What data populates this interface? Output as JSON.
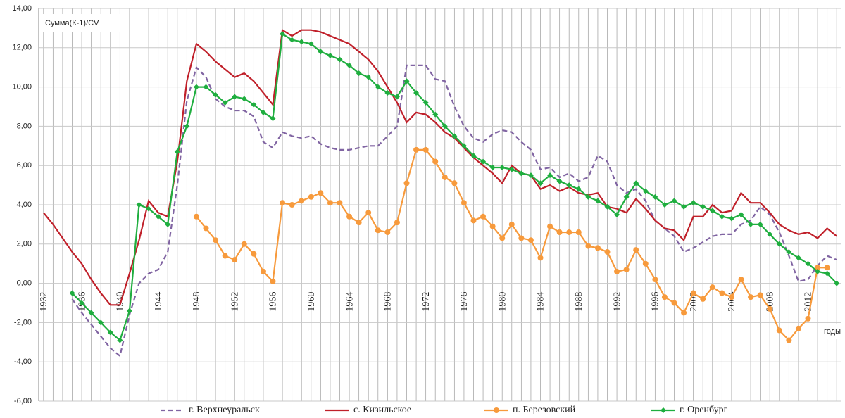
{
  "chart_data": {
    "type": "line",
    "y_label": "Сумма(К-1)/CV",
    "x_label": "годы",
    "x": [
      1932,
      1933,
      1934,
      1935,
      1936,
      1937,
      1938,
      1939,
      1940,
      1941,
      1942,
      1943,
      1944,
      1945,
      1946,
      1947,
      1948,
      1949,
      1950,
      1951,
      1952,
      1953,
      1954,
      1955,
      1956,
      1957,
      1958,
      1959,
      1960,
      1961,
      1962,
      1963,
      1964,
      1965,
      1966,
      1967,
      1968,
      1969,
      1970,
      1971,
      1972,
      1973,
      1974,
      1975,
      1976,
      1977,
      1978,
      1979,
      1980,
      1981,
      1982,
      1983,
      1984,
      1985,
      1986,
      1987,
      1988,
      1989,
      1990,
      1991,
      1992,
      1993,
      1994,
      1995,
      1996,
      1997,
      1998,
      1999,
      2000,
      2001,
      2002,
      2003,
      2004,
      2005,
      2006,
      2007,
      2008,
      2009,
      2010,
      2011,
      2012,
      2013,
      2014,
      2015
    ],
    "xlim": [
      1931.5,
      2015.5
    ],
    "xticks": [
      1932,
      1936,
      1940,
      1944,
      1948,
      1952,
      1956,
      1960,
      1964,
      1968,
      1972,
      1976,
      1980,
      1984,
      1988,
      1992,
      1996,
      2000,
      2004,
      2008,
      2012
    ],
    "ylim": [
      -6,
      14
    ],
    "yticks": [
      {
        "value": -6,
        "label": "-6,00"
      },
      {
        "value": -4,
        "label": "-4,00"
      },
      {
        "value": -2,
        "label": "-2,00"
      },
      {
        "value": 0,
        "label": "0,00"
      },
      {
        "value": 2,
        "label": "2,00"
      },
      {
        "value": 4,
        "label": "4,00"
      },
      {
        "value": 6,
        "label": "6,00"
      },
      {
        "value": 8,
        "label": "8,00"
      },
      {
        "value": 10,
        "label": "10,00"
      },
      {
        "value": 12,
        "label": "12,00"
      },
      {
        "value": 14,
        "label": "14,00"
      }
    ],
    "grid": true,
    "legend": "bottom",
    "series": [
      {
        "name": "г. Верхнеуральск",
        "color": "#8064a2",
        "line_style": "dashed",
        "marker": null,
        "values": [
          null,
          null,
          null,
          -0.8,
          -1.5,
          -2.1,
          -2.7,
          -3.3,
          -3.7,
          -1.6,
          0.0,
          0.5,
          0.7,
          1.6,
          5.0,
          9.3,
          11.0,
          10.5,
          9.4,
          9.0,
          8.8,
          8.8,
          8.5,
          7.2,
          6.9,
          7.7,
          7.5,
          7.4,
          7.5,
          7.1,
          6.9,
          6.8,
          6.8,
          6.9,
          7.0,
          7.0,
          7.5,
          8.0,
          11.1,
          11.1,
          11.1,
          10.4,
          10.3,
          9.0,
          8.0,
          7.4,
          7.2,
          7.6,
          7.8,
          7.7,
          7.2,
          6.8,
          5.8,
          5.9,
          5.4,
          5.6,
          5.2,
          5.4,
          6.5,
          6.2,
          5.0,
          4.6,
          4.8,
          4.2,
          3.2,
          2.8,
          2.4,
          1.6,
          1.8,
          2.1,
          2.4,
          2.5,
          2.5,
          3.0,
          3.2,
          3.9,
          3.5,
          2.6,
          1.4,
          0.1,
          0.2,
          0.9,
          1.4,
          1.2
        ]
      },
      {
        "name": "с. Кизильское",
        "color": "#c0202a",
        "line_style": "solid",
        "marker": null,
        "values": [
          3.6,
          3.0,
          2.3,
          1.6,
          1.0,
          0.2,
          -0.5,
          -1.1,
          -1.1,
          0.5,
          2.2,
          4.2,
          3.6,
          3.4,
          6.2,
          10.3,
          12.2,
          11.8,
          11.3,
          10.9,
          10.5,
          10.7,
          10.3,
          9.7,
          9.1,
          12.9,
          12.6,
          12.9,
          12.9,
          12.8,
          12.6,
          12.4,
          12.2,
          11.8,
          11.4,
          10.8,
          10.0,
          9.2,
          8.2,
          8.7,
          8.6,
          8.2,
          7.7,
          7.4,
          6.9,
          6.4,
          6.0,
          5.6,
          5.1,
          6.0,
          5.6,
          5.5,
          4.8,
          5.0,
          4.7,
          4.9,
          4.6,
          4.5,
          4.6,
          3.9,
          3.8,
          3.6,
          4.3,
          3.8,
          3.2,
          2.8,
          2.7,
          2.2,
          3.4,
          3.4,
          4.0,
          3.6,
          3.7,
          4.6,
          4.1,
          4.1,
          3.6,
          3.0,
          2.7,
          2.5,
          2.6,
          2.3,
          2.8,
          2.4
        ]
      },
      {
        "name": "п. Березовский",
        "color": "#f79a3c",
        "line_style": "solid",
        "marker": "circle",
        "values": [
          null,
          null,
          null,
          null,
          null,
          null,
          null,
          null,
          null,
          null,
          null,
          null,
          null,
          null,
          null,
          null,
          3.4,
          2.8,
          2.2,
          1.4,
          1.2,
          2.0,
          1.5,
          0.6,
          0.1,
          4.1,
          4.0,
          4.2,
          4.4,
          4.6,
          4.1,
          4.1,
          3.4,
          3.1,
          3.6,
          2.7,
          2.6,
          3.1,
          5.1,
          6.8,
          6.8,
          6.2,
          5.4,
          5.1,
          4.1,
          3.2,
          3.4,
          2.9,
          2.3,
          3.0,
          2.3,
          2.2,
          1.3,
          2.9,
          2.6,
          2.6,
          2.6,
          1.9,
          1.8,
          1.6,
          0.6,
          0.7,
          1.7,
          1.0,
          0.2,
          -0.7,
          -1.0,
          -1.5,
          -0.5,
          -0.8,
          -0.2,
          -0.5,
          -0.7,
          0.2,
          -0.7,
          -0.6,
          -1.3,
          -2.4,
          -2.9,
          -2.3,
          -1.8,
          0.8,
          0.8,
          null
        ]
      },
      {
        "name": "г. Оренбург",
        "color": "#1fae3f",
        "line_style": "solid",
        "marker": "diamond",
        "values": [
          null,
          null,
          null,
          -0.5,
          -1.0,
          -1.5,
          -2.0,
          -2.5,
          -2.9,
          -1.4,
          4.0,
          3.8,
          3.4,
          3.0,
          6.7,
          8.0,
          10.0,
          10.0,
          9.6,
          9.2,
          9.5,
          9.4,
          9.1,
          8.7,
          8.4,
          12.7,
          12.4,
          12.3,
          12.2,
          11.8,
          11.6,
          11.4,
          11.1,
          10.7,
          10.5,
          10.0,
          9.7,
          9.5,
          10.3,
          9.7,
          9.2,
          8.6,
          8.0,
          7.5,
          7.0,
          6.5,
          6.2,
          5.9,
          5.9,
          5.8,
          5.6,
          5.5,
          5.1,
          5.5,
          5.2,
          5.0,
          4.8,
          4.4,
          4.2,
          3.9,
          3.5,
          4.4,
          5.1,
          4.7,
          4.4,
          4.0,
          4.2,
          3.9,
          4.1,
          3.9,
          3.7,
          3.4,
          3.3,
          3.5,
          3.0,
          3.0,
          2.5,
          2.0,
          1.6,
          1.3,
          1.0,
          0.6,
          0.5,
          0.0
        ]
      }
    ]
  }
}
